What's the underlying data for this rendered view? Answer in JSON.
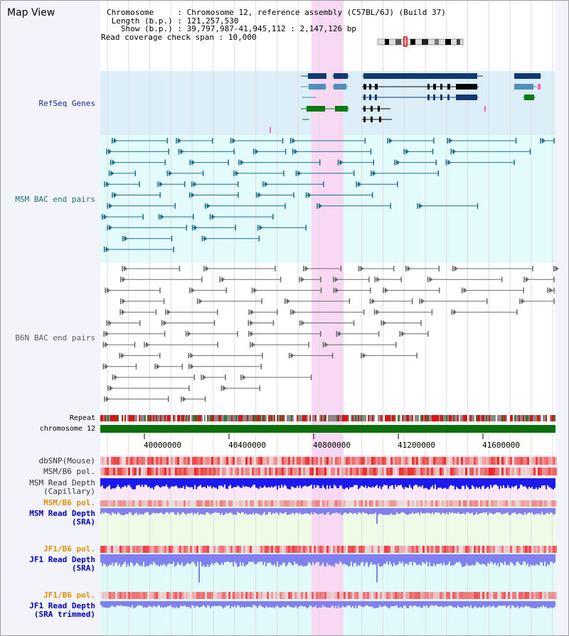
{
  "window": {
    "title": "Map View"
  },
  "info": {
    "chromosome_label": "Chromosome",
    "chromosome_value": "Chromosome 12, reference assembly (C57BL/6J) (Build 37)",
    "length_label": "Length (b.p.)",
    "length_value": "121,257,530",
    "show_label": "Show (b.p.)",
    "show_value": "39,797,987-41,945,112 : 2,147,126 bp",
    "span_label": "Read coverage check span",
    "span_value": "10,000"
  },
  "tracks": {
    "refseq": "RefSeq Genes",
    "msm_bac": "MSM BAC end pairs",
    "b6n_bac": "B6N BAC end pairs",
    "repeat": "Repeat",
    "chromosome": "chromosome 12",
    "dbsnp": "dbSNP(Mouse)",
    "msm_b6_pol_1": "MSM/B6 pol.",
    "msm_depth_cap_1": "MSM Read Depth",
    "msm_depth_cap_2": "(Capillary)",
    "msm_b6_pol_2": "MSM/B6 pol.",
    "msm_depth_sra_1": "MSM Read Depth",
    "msm_depth_sra_2": "(SRA)",
    "jf1_b6_pol_1": "JF1/B6 pol.",
    "jf1_depth_sra_1": "JF1 Read Depth",
    "jf1_depth_sra_2": "(SRA)",
    "jf1_b6_pol_2": "JF1/B6 pol.",
    "jf1_depth_trim_1": "JF1 Read Depth",
    "jf1_depth_trim_2": "(SRA trimmed)"
  },
  "axis": {
    "ticks": [
      "40000000",
      "40400000",
      "40800000",
      "41200000",
      "41600000"
    ]
  },
  "colors": {
    "gene_band": "#dceef8",
    "msm_band": "#e3fbfb",
    "highlight": "#f8d8f2",
    "gene_dark": "#123a70",
    "gene_light": "#4f8fb8",
    "gene_green": "#0b7a12",
    "msm_line": "#1e6f8c",
    "b6n_line": "#6a6a6a",
    "chrom_bar": "#0e6f0e",
    "depth_dark": "#1a1aee",
    "depth_light": "#8080f0"
  }
}
